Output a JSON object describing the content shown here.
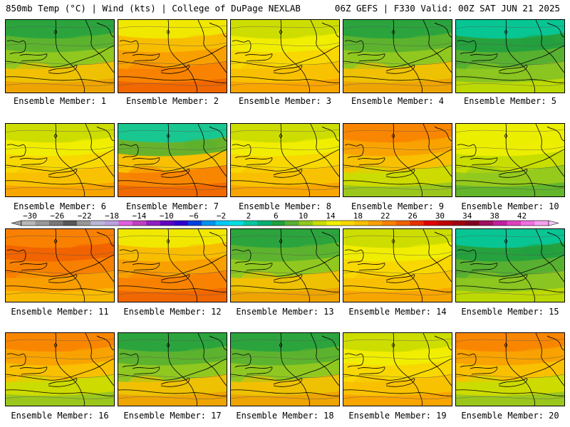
{
  "header": {
    "left": "850mb Temp (°C) | Wind (kts) | College of DuPage NEXLAB",
    "right": "06Z GEFS | F330 Valid: 00Z SAT JUN 21 2025"
  },
  "caption_prefix": "Ensemble Member: ",
  "members": [
    {
      "label": "Ensemble Member: 1",
      "base": "#c9de00",
      "pattern": "cool-north"
    },
    {
      "label": "Ensemble Member: 2",
      "base": "#f8a000",
      "pattern": "warm-south"
    },
    {
      "label": "Ensemble Member: 3",
      "base": "#f8d800",
      "pattern": "mild"
    },
    {
      "label": "Ensemble Member: 4",
      "base": "#d8e000",
      "pattern": "cool-north"
    },
    {
      "label": "Ensemble Member: 5",
      "base": "#58b030",
      "pattern": "cold"
    },
    {
      "label": "Ensemble Member: 6",
      "base": "#f8c000",
      "pattern": "mild"
    },
    {
      "label": "Ensemble Member: 7",
      "base": "#f8b000",
      "pattern": "cool-west"
    },
    {
      "label": "Ensemble Member: 8",
      "base": "#f8c000",
      "pattern": "mild"
    },
    {
      "label": "Ensemble Member: 9",
      "base": "#f8c800",
      "pattern": "warm-west"
    },
    {
      "label": "Ensemble Member: 10",
      "base": "#f0e000",
      "pattern": "cool-east"
    },
    {
      "label": "Ensemble Member: 11",
      "base": "#f88800",
      "pattern": "hot"
    },
    {
      "label": "Ensemble Member: 12",
      "base": "#f8b800",
      "pattern": "warm-south"
    },
    {
      "label": "Ensemble Member: 13",
      "base": "#f8b000",
      "pattern": "cool-north"
    },
    {
      "label": "Ensemble Member: 14",
      "base": "#f8d800",
      "pattern": "mild"
    },
    {
      "label": "Ensemble Member: 15",
      "base": "#88c020",
      "pattern": "cold"
    },
    {
      "label": "Ensemble Member: 16",
      "base": "#f8a000",
      "pattern": "warm-west"
    },
    {
      "label": "Ensemble Member: 17",
      "base": "#f8c000",
      "pattern": "cool-north"
    },
    {
      "label": "Ensemble Member: 18",
      "base": "#f8c800",
      "pattern": "cool-north"
    },
    {
      "label": "Ensemble Member: 19",
      "base": "#f8e000",
      "pattern": "mild"
    },
    {
      "label": "Ensemble Member: 20",
      "base": "#f8a000",
      "pattern": "warm-west"
    }
  ],
  "colorbar": {
    "labels": [
      "-30",
      "-26",
      "-22",
      "-18",
      "-14",
      "-10",
      "-6",
      "-2",
      "2",
      "6",
      "10",
      "14",
      "18",
      "22",
      "26",
      "30",
      "34",
      "38",
      "42"
    ],
    "colors": [
      "#b8b8b8",
      "#989898",
      "#787878",
      "#585858",
      "#989898",
      "#b8b8d8",
      "#b8a0e0",
      "#e060e0",
      "#c040c0",
      "#9020c0",
      "#6000c0",
      "#3000d0",
      "#0040e0",
      "#0090f0",
      "#00c8f8",
      "#00e0e0",
      "#00c8a0",
      "#00b070",
      "#20a040",
      "#58b030",
      "#90c820",
      "#c8de00",
      "#f0f000",
      "#f8d800",
      "#f8c000",
      "#f8a000",
      "#f88000",
      "#f06000",
      "#e83000",
      "#e00000",
      "#c00000",
      "#a00010",
      "#800020",
      "#a01060",
      "#c020a0",
      "#e040c0",
      "#f070e0",
      "#f8a0f0"
    ]
  }
}
